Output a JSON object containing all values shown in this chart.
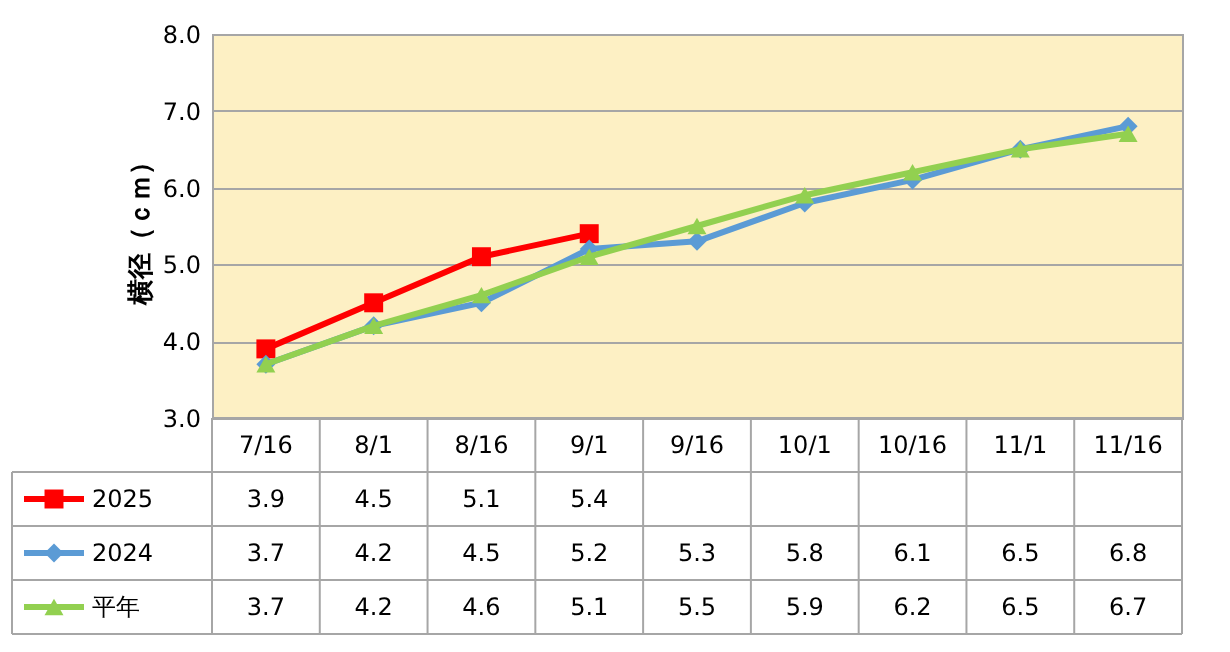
{
  "chart_data": {
    "type": "line",
    "ylabel": "横径（ｃｍ）",
    "categories": [
      "7/16",
      "8/1",
      "8/16",
      "9/1",
      "9/16",
      "10/1",
      "10/16",
      "11/1",
      "11/16"
    ],
    "series": [
      {
        "name": "2025",
        "color": "#ff0000",
        "marker": "square",
        "values": [
          3.9,
          4.5,
          5.1,
          5.4,
          null,
          null,
          null,
          null,
          null
        ]
      },
      {
        "name": "2024",
        "color": "#5b9bd5",
        "marker": "diamond",
        "values": [
          3.7,
          4.2,
          4.5,
          5.2,
          5.3,
          5.8,
          6.1,
          6.5,
          6.8
        ]
      },
      {
        "name": "平年",
        "color": "#92d050",
        "marker": "triangle",
        "values": [
          3.7,
          4.2,
          4.6,
          5.1,
          5.5,
          5.9,
          6.2,
          6.5,
          6.7
        ]
      }
    ],
    "ylim": [
      3,
      8
    ],
    "yticks": [
      {
        "value": 3,
        "label": "3.0"
      },
      {
        "value": 4,
        "label": "4.0"
      },
      {
        "value": 5,
        "label": "5.0"
      },
      {
        "value": 6,
        "label": "6.0"
      },
      {
        "value": 7,
        "label": "7.0"
      },
      {
        "value": 8,
        "label": "8.0"
      }
    ],
    "grid": "y",
    "legend": "bottom",
    "data_labels": true,
    "line_style": "solid"
  }
}
